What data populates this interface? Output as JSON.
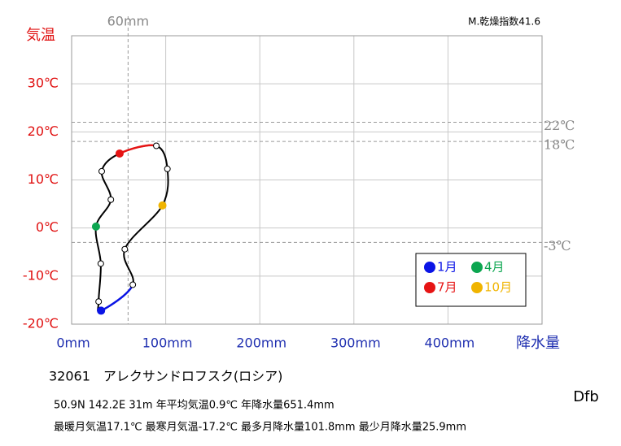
{
  "chart_data": {
    "type": "climograph",
    "y_label": "気温",
    "x_label": "降水量",
    "x": [
      31.3,
      28.7,
      31,
      25.9,
      41.7,
      32,
      51,
      90,
      101.8,
      96.5,
      56.5,
      65
    ],
    "values": [
      -17.2,
      -15.3,
      -7.4,
      0.3,
      5.9,
      11.8,
      15.5,
      17.1,
      12.3,
      4.7,
      -4.4,
      -11.8
    ],
    "legend": [
      {
        "name": "1月",
        "color": "#0a14e6"
      },
      {
        "name": "4月",
        "color": "#0ca650"
      },
      {
        "name": "7月",
        "color": "#e61414"
      },
      {
        "name": "10月",
        "color": "#f0b400"
      }
    ],
    "xlim": [
      0,
      500
    ],
    "ylim": [
      -20,
      40
    ],
    "xticks": [
      {
        "value": 0,
        "label": "0mm"
      },
      {
        "value": 100,
        "label": "100mm"
      },
      {
        "value": 200,
        "label": "200mm"
      },
      {
        "value": 300,
        "label": "300mm"
      },
      {
        "value": 400,
        "label": "400mm"
      }
    ],
    "yticks": [
      {
        "value": -20,
        "label": "-20℃"
      },
      {
        "value": -10,
        "label": "-10℃"
      },
      {
        "value": 0,
        "label": "0℃"
      },
      {
        "value": 10,
        "label": "10℃"
      },
      {
        "value": 20,
        "label": "20℃"
      },
      {
        "value": 30,
        "label": "30℃"
      }
    ],
    "ref_x": [
      {
        "value": 60,
        "label": "60mm"
      }
    ],
    "ref_y": [
      {
        "value": 22,
        "label": "22℃"
      },
      {
        "value": 18,
        "label": "18℃"
      },
      {
        "value": -3,
        "label": "-3℃"
      }
    ],
    "grid": true,
    "index": "M.乾燥指数41.6",
    "station": "32061　アレクサンドロフスク(ロシア)",
    "info1": "50.9N  142.2E 31m  年平均気温0.9℃ 年降水量651.4mm",
    "info2": "最暖月気温17.1℃ 最寒月気温-17.2℃ 最多月降水量101.8mm 最少月降水量25.9mm",
    "climate": "Dfb"
  }
}
